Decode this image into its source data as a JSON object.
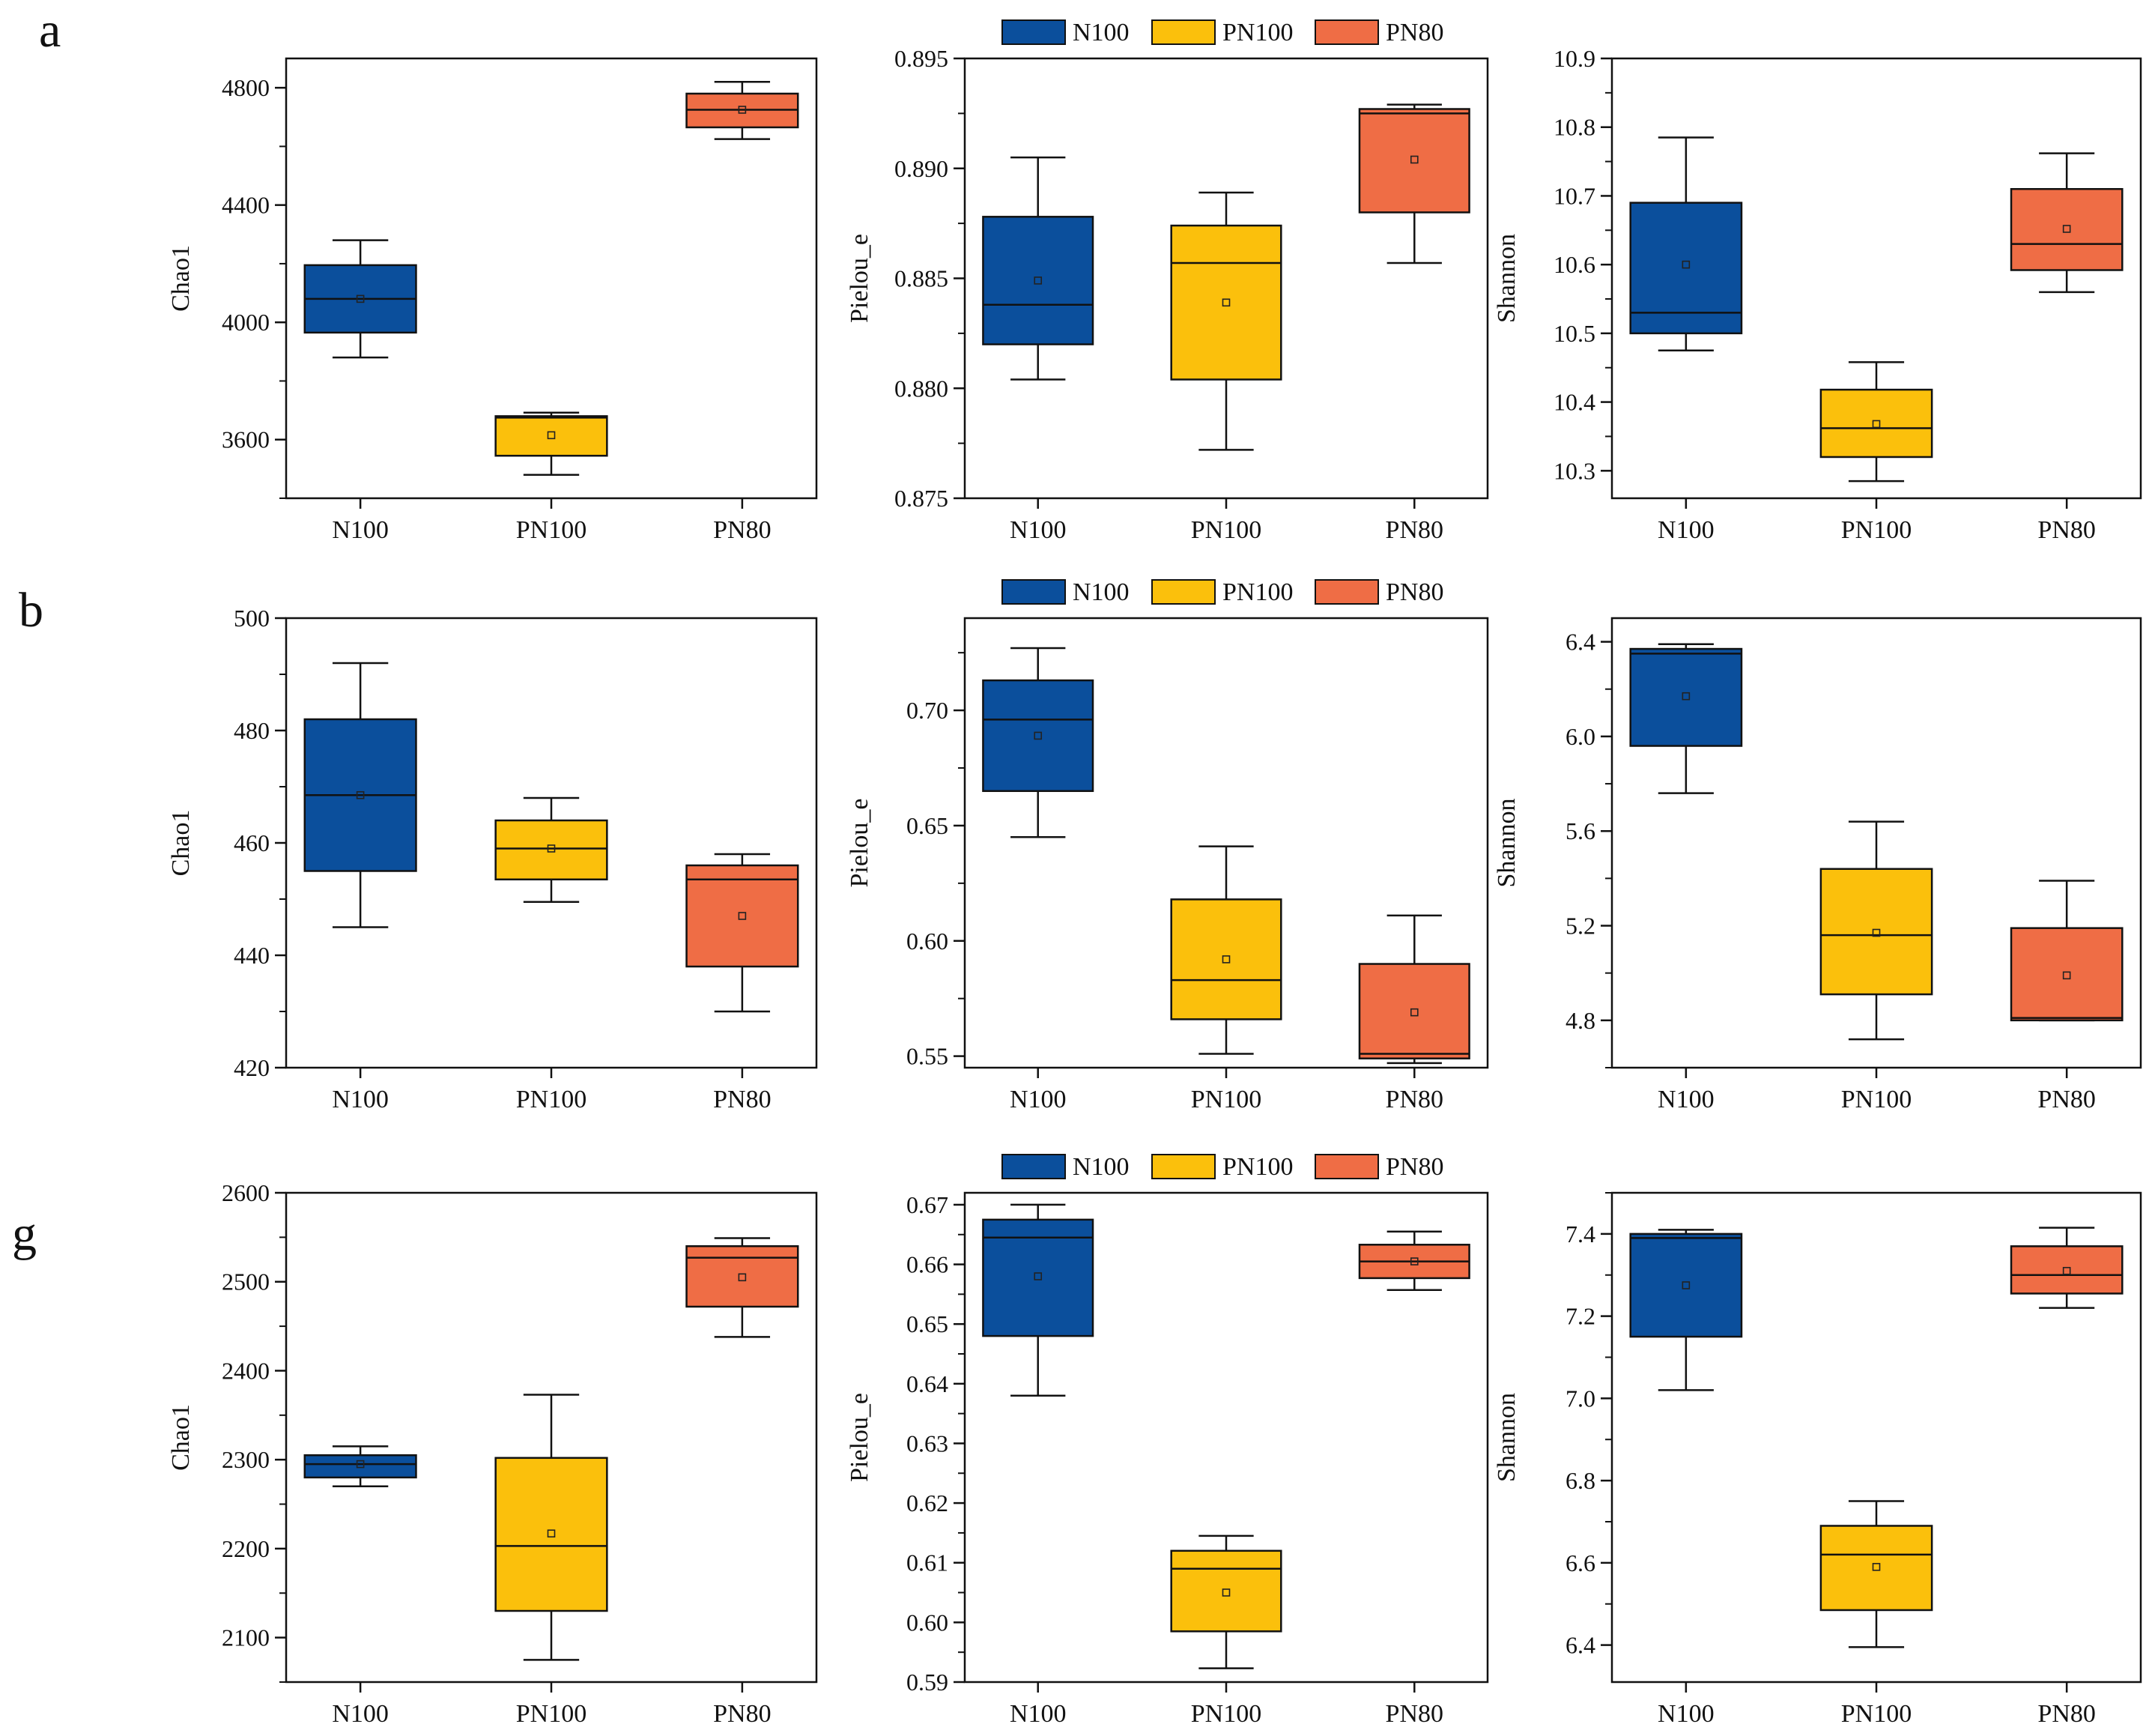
{
  "figure": {
    "legend": [
      "N100",
      "PN100",
      "PN80"
    ],
    "colors": {
      "N100": "#0b4f9c",
      "PN100": "#fbc00c",
      "PN80": "#ef6d45"
    }
  },
  "chart_data": [
    {
      "type": "box",
      "row": "a",
      "panel": "a-chao1",
      "ylabel": "Chao1",
      "ylim": [
        3400,
        4900
      ],
      "yticks": [
        3600,
        4000,
        4400,
        4800
      ],
      "yticks_fmt": [
        "3600",
        "4000",
        "4400",
        "4800"
      ],
      "categories": [
        "N100",
        "PN100",
        "PN80"
      ],
      "legend": false,
      "boxes": [
        {
          "min": 3880,
          "q1": 3965,
          "median": 4080,
          "q3": 4195,
          "max": 4280,
          "mean": 4080
        },
        {
          "min": 3480,
          "q1": 3545,
          "median": 3675,
          "q3": 3680,
          "max": 3692,
          "mean": 3615
        },
        {
          "min": 4625,
          "q1": 4665,
          "median": 4725,
          "q3": 4780,
          "max": 4820,
          "mean": 4725
        }
      ]
    },
    {
      "type": "box",
      "row": "a",
      "panel": "a-pielou",
      "ylabel": "Pielou_e",
      "ylim": [
        0.875,
        0.895
      ],
      "yticks": [
        0.875,
        0.88,
        0.885,
        0.89,
        0.895
      ],
      "yticks_fmt": [
        "0.875",
        "0.880",
        "0.885",
        "0.890",
        "0.895"
      ],
      "categories": [
        "N100",
        "PN100",
        "PN80"
      ],
      "legend": true,
      "boxes": [
        {
          "min": 0.8804,
          "q1": 0.882,
          "median": 0.8838,
          "q3": 0.8878,
          "max": 0.8905,
          "mean": 0.8849
        },
        {
          "min": 0.8772,
          "q1": 0.8804,
          "median": 0.8857,
          "q3": 0.8874,
          "max": 0.8889,
          "mean": 0.8839
        },
        {
          "min": 0.8857,
          "q1": 0.888,
          "median": 0.8925,
          "q3": 0.8927,
          "max": 0.8929,
          "mean": 0.8904
        }
      ]
    },
    {
      "type": "box",
      "row": "a",
      "panel": "a-shannon",
      "ylabel": "Shannon",
      "ylim": [
        10.26,
        10.9
      ],
      "yticks": [
        10.3,
        10.4,
        10.5,
        10.6,
        10.7,
        10.8,
        10.9
      ],
      "yticks_fmt": [
        "10.3",
        "10.4",
        "10.5",
        "10.6",
        "10.7",
        "10.8",
        "10.9"
      ],
      "categories": [
        "N100",
        "PN100",
        "PN80"
      ],
      "legend": false,
      "boxes": [
        {
          "min": 10.475,
          "q1": 10.5,
          "median": 10.53,
          "q3": 10.69,
          "max": 10.785,
          "mean": 10.6
        },
        {
          "min": 10.285,
          "q1": 10.32,
          "median": 10.362,
          "q3": 10.418,
          "max": 10.458,
          "mean": 10.368
        },
        {
          "min": 10.56,
          "q1": 10.592,
          "median": 10.63,
          "q3": 10.71,
          "max": 10.762,
          "mean": 10.652
        }
      ]
    },
    {
      "type": "box",
      "row": "b",
      "panel": "b-chao1",
      "ylabel": "Chao1",
      "ylim": [
        420,
        500
      ],
      "yticks": [
        420,
        440,
        460,
        480,
        500
      ],
      "yticks_fmt": [
        "420",
        "440",
        "460",
        "480",
        "500"
      ],
      "categories": [
        "N100",
        "PN100",
        "PN80"
      ],
      "legend": false,
      "boxes": [
        {
          "min": 445,
          "q1": 455,
          "median": 468.5,
          "q3": 482,
          "max": 492,
          "mean": 468.5
        },
        {
          "min": 449.5,
          "q1": 453.5,
          "median": 459,
          "q3": 464,
          "max": 468,
          "mean": 459
        },
        {
          "min": 430,
          "q1": 438,
          "median": 453.5,
          "q3": 456,
          "max": 458,
          "mean": 447
        }
      ]
    },
    {
      "type": "box",
      "row": "b",
      "panel": "b-pielou",
      "ylabel": "Pielou_e",
      "ylim": [
        0.545,
        0.74
      ],
      "yticks": [
        0.55,
        0.6,
        0.65,
        0.7
      ],
      "yticks_fmt": [
        "0.55",
        "0.60",
        "0.65",
        "0.70"
      ],
      "categories": [
        "N100",
        "PN100",
        "PN80"
      ],
      "legend": true,
      "boxes": [
        {
          "min": 0.645,
          "q1": 0.665,
          "median": 0.696,
          "q3": 0.713,
          "max": 0.727,
          "mean": 0.689
        },
        {
          "min": 0.551,
          "q1": 0.566,
          "median": 0.583,
          "q3": 0.618,
          "max": 0.641,
          "mean": 0.592
        },
        {
          "min": 0.547,
          "q1": 0.549,
          "median": 0.551,
          "q3": 0.59,
          "max": 0.611,
          "mean": 0.569
        }
      ]
    },
    {
      "type": "box",
      "row": "b",
      "panel": "b-shannon",
      "ylabel": "Shannon",
      "ylim": [
        4.6,
        6.5
      ],
      "yticks": [
        4.8,
        5.2,
        5.6,
        6.0,
        6.4
      ],
      "yticks_fmt": [
        "4.8",
        "5.2",
        "5.6",
        "6.0",
        "6.4"
      ],
      "categories": [
        "N100",
        "PN100",
        "PN80"
      ],
      "legend": false,
      "boxes": [
        {
          "min": 5.76,
          "q1": 5.96,
          "median": 6.35,
          "q3": 6.37,
          "max": 6.39,
          "mean": 6.17
        },
        {
          "min": 4.72,
          "q1": 4.91,
          "median": 5.16,
          "q3": 5.44,
          "max": 5.64,
          "mean": 5.17
        },
        {
          "min": 4.8,
          "q1": 4.8,
          "median": 4.81,
          "q3": 5.19,
          "max": 5.39,
          "mean": 4.99
        }
      ]
    },
    {
      "type": "box",
      "row": "g",
      "panel": "g-chao1",
      "ylabel": "Chao1",
      "ylim": [
        2050,
        2600
      ],
      "yticks": [
        2100,
        2200,
        2300,
        2400,
        2500,
        2600
      ],
      "yticks_fmt": [
        "2100",
        "2200",
        "2300",
        "2400",
        "2500",
        "2600"
      ],
      "categories": [
        "N100",
        "PN100",
        "PN80"
      ],
      "legend": false,
      "boxes": [
        {
          "min": 2270,
          "q1": 2280,
          "median": 2295,
          "q3": 2305,
          "max": 2315,
          "mean": 2295
        },
        {
          "min": 2075,
          "q1": 2130,
          "median": 2203,
          "q3": 2302,
          "max": 2373,
          "mean": 2217
        },
        {
          "min": 2438,
          "q1": 2472,
          "median": 2527,
          "q3": 2540,
          "max": 2549,
          "mean": 2505
        }
      ]
    },
    {
      "type": "box",
      "row": "g",
      "panel": "g-pielou",
      "ylabel": "Pielou_e",
      "ylim": [
        0.59,
        0.672
      ],
      "yticks": [
        0.59,
        0.6,
        0.61,
        0.62,
        0.63,
        0.64,
        0.65,
        0.66,
        0.67
      ],
      "yticks_fmt": [
        "0.59",
        "0.60",
        "0.61",
        "0.62",
        "0.63",
        "0.64",
        "0.65",
        "0.66",
        "0.67"
      ],
      "categories": [
        "N100",
        "PN100",
        "PN80"
      ],
      "legend": true,
      "boxes": [
        {
          "min": 0.638,
          "q1": 0.648,
          "median": 0.6645,
          "q3": 0.6675,
          "max": 0.67,
          "mean": 0.658
        },
        {
          "min": 0.5923,
          "q1": 0.5985,
          "median": 0.609,
          "q3": 0.612,
          "max": 0.6145,
          "mean": 0.605
        },
        {
          "min": 0.6557,
          "q1": 0.6577,
          "median": 0.6605,
          "q3": 0.6633,
          "max": 0.6655,
          "mean": 0.6605
        }
      ]
    },
    {
      "type": "box",
      "row": "g",
      "panel": "g-shannon",
      "ylabel": "Shannon",
      "ylim": [
        6.31,
        7.5
      ],
      "yticks": [
        6.4,
        6.6,
        6.8,
        7.0,
        7.2,
        7.4
      ],
      "yticks_fmt": [
        "6.4",
        "6.6",
        "6.8",
        "7.0",
        "7.2",
        "7.4"
      ],
      "categories": [
        "N100",
        "PN100",
        "PN80"
      ],
      "legend": false,
      "boxes": [
        {
          "min": 7.02,
          "q1": 7.15,
          "median": 7.39,
          "q3": 7.4,
          "max": 7.41,
          "mean": 7.275
        },
        {
          "min": 6.395,
          "q1": 6.485,
          "median": 6.62,
          "q3": 6.69,
          "max": 6.75,
          "mean": 6.59
        },
        {
          "min": 7.22,
          "q1": 7.255,
          "median": 7.3,
          "q3": 7.37,
          "max": 7.415,
          "mean": 7.31
        }
      ]
    }
  ]
}
